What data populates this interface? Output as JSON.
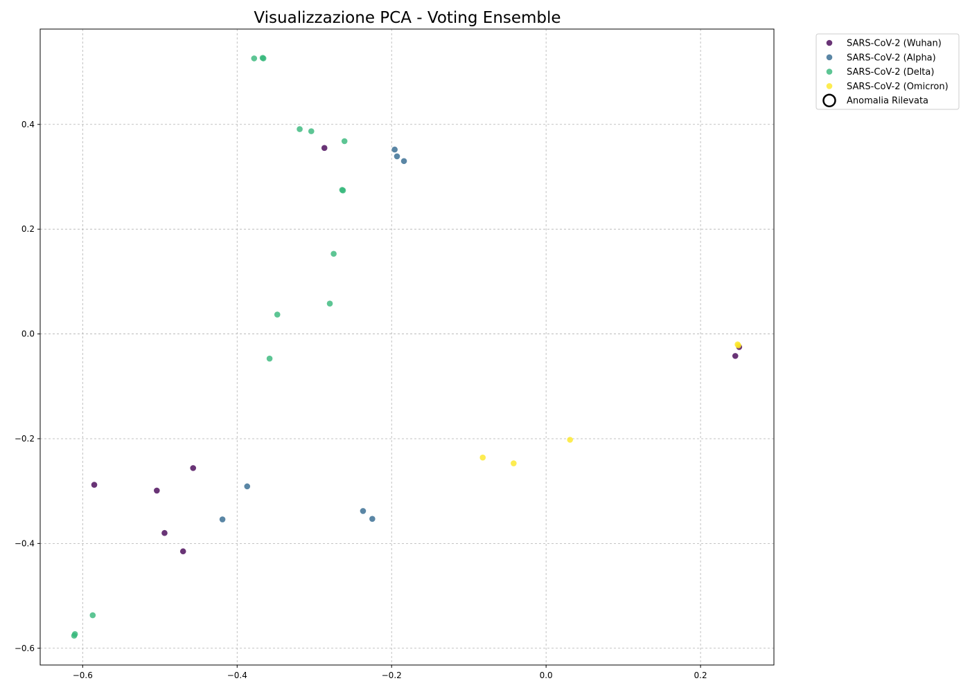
{
  "chart_data": {
    "type": "scatter",
    "title": "Visualizzazione PCA - Voting Ensemble",
    "xlabel": "",
    "ylabel": "",
    "xlim": [
      -0.655,
      0.295
    ],
    "ylim": [
      -0.632,
      0.582
    ],
    "xticks": [
      -0.6,
      -0.4,
      -0.2,
      0.0,
      0.2
    ],
    "xtick_labels": [
      "−0.6",
      "−0.4",
      "−0.2",
      "0.0",
      "0.2"
    ],
    "yticks": [
      -0.6,
      -0.4,
      -0.2,
      0.0,
      0.2,
      0.4
    ],
    "ytick_labels": [
      "−0.6",
      "−0.4",
      "−0.2",
      "0.0",
      "0.2",
      "0.4"
    ],
    "grid": true,
    "legend_position": "outside-top-right",
    "series": [
      {
        "name": "SARS-CoV-2 (Wuhan)",
        "color": "#440154",
        "points": [
          {
            "x": -0.287,
            "y": 0.355
          },
          {
            "x": -0.585,
            "y": -0.288
          },
          {
            "x": -0.504,
            "y": -0.299
          },
          {
            "x": -0.457,
            "y": -0.256
          },
          {
            "x": -0.494,
            "y": -0.38
          },
          {
            "x": -0.47,
            "y": -0.415
          },
          {
            "x": 0.245,
            "y": -0.042
          },
          {
            "x": 0.25,
            "y": -0.025
          }
        ]
      },
      {
        "name": "SARS-CoV-2 (Alpha)",
        "color": "#31688e",
        "points": [
          {
            "x": -0.196,
            "y": 0.352
          },
          {
            "x": -0.193,
            "y": 0.339
          },
          {
            "x": -0.184,
            "y": 0.33
          },
          {
            "x": -0.387,
            "y": -0.291
          },
          {
            "x": -0.419,
            "y": -0.354
          },
          {
            "x": -0.237,
            "y": -0.338
          },
          {
            "x": -0.225,
            "y": -0.353
          }
        ]
      },
      {
        "name": "SARS-CoV-2 (Delta)",
        "color": "#35b779",
        "points": [
          {
            "x": -0.378,
            "y": 0.526
          },
          {
            "x": -0.367,
            "y": 0.527
          },
          {
            "x": -0.366,
            "y": 0.526
          },
          {
            "x": -0.319,
            "y": 0.391
          },
          {
            "x": -0.304,
            "y": 0.387
          },
          {
            "x": -0.261,
            "y": 0.368
          },
          {
            "x": -0.264,
            "y": 0.275
          },
          {
            "x": -0.263,
            "y": 0.274
          },
          {
            "x": -0.275,
            "y": 0.153
          },
          {
            "x": -0.28,
            "y": 0.058
          },
          {
            "x": -0.348,
            "y": 0.037
          },
          {
            "x": -0.358,
            "y": -0.047
          },
          {
            "x": -0.587,
            "y": -0.537
          },
          {
            "x": -0.61,
            "y": -0.573
          },
          {
            "x": -0.611,
            "y": -0.576
          }
        ]
      },
      {
        "name": "SARS-CoV-2 (Omicron)",
        "color": "#fde725",
        "points": [
          {
            "x": -0.082,
            "y": -0.236
          },
          {
            "x": -0.042,
            "y": -0.247
          },
          {
            "x": 0.031,
            "y": -0.202
          },
          {
            "x": 0.248,
            "y": -0.02
          },
          {
            "x": 0.249,
            "y": -0.022
          }
        ]
      }
    ],
    "anomaly_legend": "Anomalia Rilevata"
  }
}
